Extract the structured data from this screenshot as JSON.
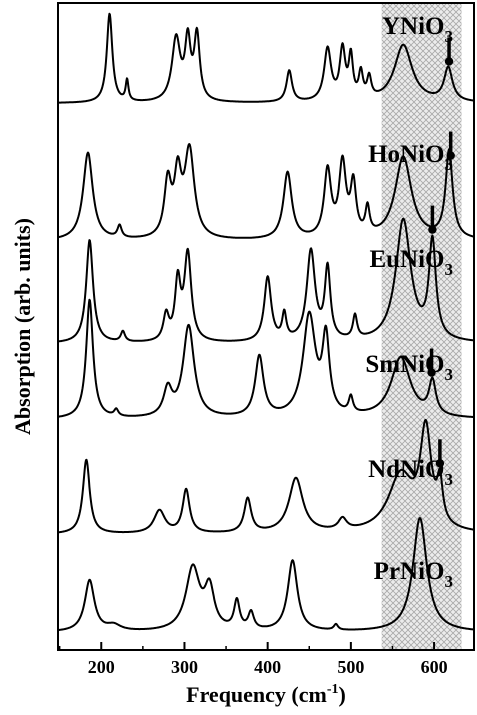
{
  "chart_data": {
    "type": "line",
    "xlabel_main": "Frequency (cm",
    "xlabel_sup": "-1",
    "xlabel_end": ")",
    "ylabel": "Absorption (arb. units)",
    "xlim": [
      148,
      648
    ],
    "x_ticks": [
      200,
      300,
      400,
      500,
      600
    ],
    "x_tick_labels": [
      "200",
      "300",
      "400",
      "500",
      "600"
    ],
    "shaded_region": {
      "x": [
        537,
        633
      ],
      "pattern": "crosshatch",
      "color": "#c8c8c8"
    },
    "series": [
      {
        "name": "YNiO",
        "subscript": "3",
        "baseline": 0.16,
        "scale": 0.95,
        "marker_x": 618,
        "peaks": [
          [
            210,
            0.85,
            4
          ],
          [
            231,
            0.2,
            2
          ],
          [
            290,
            0.6,
            6
          ],
          [
            304,
            0.55,
            4
          ],
          [
            315,
            0.62,
            4
          ],
          [
            426,
            0.3,
            4
          ],
          [
            472,
            0.5,
            5
          ],
          [
            490,
            0.48,
            4
          ],
          [
            500,
            0.4,
            3
          ],
          [
            512,
            0.25,
            3
          ],
          [
            522,
            0.2,
            3
          ],
          [
            563,
            0.55,
            13
          ],
          [
            617,
            0.32,
            6
          ]
        ]
      },
      {
        "name": "HoNiO",
        "subscript": "3",
        "baseline": 0.05,
        "scale": 0.9,
        "marker_x": 620,
        "peaks": [
          [
            184,
            0.72,
            7
          ],
          [
            222,
            0.1,
            3
          ],
          [
            280,
            0.45,
            5
          ],
          [
            292,
            0.48,
            5
          ],
          [
            306,
            0.72,
            7
          ],
          [
            424,
            0.55,
            6
          ],
          [
            472,
            0.55,
            5
          ],
          [
            490,
            0.6,
            5
          ],
          [
            503,
            0.42,
            4
          ],
          [
            520,
            0.22,
            3
          ],
          [
            563,
            0.68,
            12
          ],
          [
            618,
            0.72,
            5
          ]
        ]
      },
      {
        "name": "EuNiO",
        "subscript": "3",
        "baseline": 0.05,
        "scale": 0.92,
        "marker_x": 598,
        "peaks": [
          [
            186,
            0.8,
            5
          ],
          [
            226,
            0.08,
            3
          ],
          [
            278,
            0.2,
            4
          ],
          [
            292,
            0.45,
            4
          ],
          [
            304,
            0.68,
            5
          ],
          [
            400,
            0.5,
            5
          ],
          [
            420,
            0.2,
            3
          ],
          [
            452,
            0.7,
            6
          ],
          [
            472,
            0.55,
            4
          ],
          [
            505,
            0.18,
            3
          ],
          [
            563,
            0.95,
            11
          ],
          [
            598,
            0.75,
            5
          ]
        ]
      },
      {
        "name": "SmNiO",
        "subscript": "3",
        "baseline": 0.25,
        "scale": 1.0,
        "marker_x": 597,
        "peaks": [
          [
            186,
            0.88,
            5
          ],
          [
            218,
            0.05,
            3
          ],
          [
            280,
            0.2,
            6
          ],
          [
            305,
            0.68,
            8
          ],
          [
            390,
            0.45,
            6
          ],
          [
            450,
            0.75,
            9
          ],
          [
            470,
            0.55,
            5
          ],
          [
            500,
            0.12,
            3
          ],
          [
            560,
            0.45,
            14
          ],
          [
            598,
            0.25,
            5
          ]
        ]
      },
      {
        "name": "NdNiO",
        "subscript": "3",
        "baseline": 0.05,
        "scale": 0.95,
        "marker_x": 607,
        "peaks": [
          [
            182,
            0.65,
            5
          ],
          [
            270,
            0.2,
            8
          ],
          [
            302,
            0.38,
            5
          ],
          [
            376,
            0.3,
            5
          ],
          [
            434,
            0.48,
            10
          ],
          [
            490,
            0.1,
            6
          ],
          [
            560,
            0.5,
            18
          ],
          [
            590,
            0.85,
            8
          ],
          [
            607,
            0.35,
            4
          ]
        ]
      },
      {
        "name": "PrNiO",
        "subscript": "3",
        "baseline": 0.05,
        "scale": 0.95,
        "marker_x": null,
        "peaks": [
          [
            186,
            0.45,
            7
          ],
          [
            215,
            0.05,
            10
          ],
          [
            310,
            0.55,
            10
          ],
          [
            330,
            0.35,
            7
          ],
          [
            363,
            0.25,
            4
          ],
          [
            380,
            0.15,
            4
          ],
          [
            430,
            0.62,
            7
          ],
          [
            482,
            0.05,
            3
          ],
          [
            583,
            1.0,
            10
          ]
        ]
      }
    ]
  }
}
